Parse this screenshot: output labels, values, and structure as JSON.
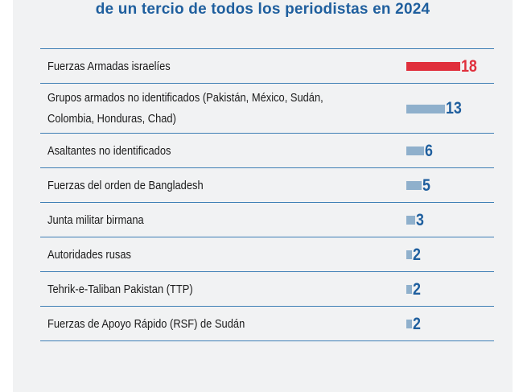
{
  "title": "de un tercio de todos los periodistas en 2024",
  "colors": {
    "highlight": "#e0303c",
    "bar": "#8fb0cc",
    "value": "#1f5f9e",
    "rule": "#3f7fb5",
    "title": "#1f5f9e"
  },
  "chart_data": {
    "type": "bar",
    "orientation": "horizontal",
    "title": "de un tercio de todos los periodistas en 2024",
    "categories": [
      "Fuerzas Armadas israelíes",
      "Grupos armados no identificados (Pakistán, México, Sudán, Colombia, Honduras, Chad)",
      "Asaltantes no identificados",
      "Fuerzas del orden de Bangladesh",
      "Junta militar birmana",
      "Autoridades rusas",
      "Tehrik-e-Taliban Pakistan (TTP)",
      "Fuerzas de Apoyo Rápido (RSF) de Sudán"
    ],
    "values": [
      18,
      13,
      6,
      5,
      3,
      2,
      2,
      2
    ],
    "highlight_index": 0
  }
}
